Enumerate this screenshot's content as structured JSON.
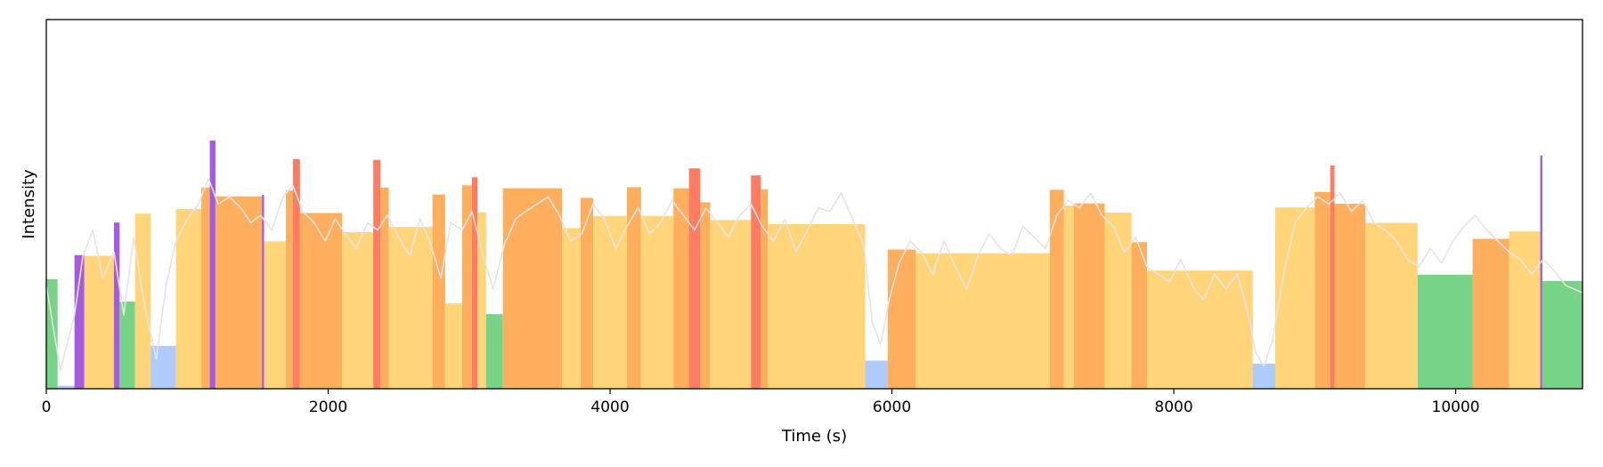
{
  "chart_data": {
    "type": "bar",
    "title": "",
    "xlabel": "Time (s)",
    "ylabel": "Intensity",
    "xlim": [
      0,
      10900
    ],
    "ylim": [
      0,
      1
    ],
    "grid": false,
    "legend": "none",
    "x_ticks": [
      0,
      2000,
      4000,
      6000,
      8000,
      10000
    ],
    "x_tick_labels": [
      "0",
      "2000",
      "4000",
      "6000",
      "8000",
      "10000"
    ],
    "colors": {
      "green": "#77d385",
      "blue": "#aecbfa",
      "yellow": "#ffd57a",
      "orange": "#fdaf5d",
      "red": "#ff7b61",
      "purple": "#a45bdc",
      "trace": "#e4e4e4"
    },
    "segments": [
      {
        "start": 0,
        "end": 80,
        "value": 0.297,
        "color": "green"
      },
      {
        "start": 80,
        "end": 200,
        "value": 0.008,
        "color": "blue"
      },
      {
        "start": 200,
        "end": 270,
        "value": 0.362,
        "color": "purple"
      },
      {
        "start": 270,
        "end": 480,
        "value": 0.36,
        "color": "yellow"
      },
      {
        "start": 480,
        "end": 520,
        "value": 0.45,
        "color": "purple"
      },
      {
        "start": 520,
        "end": 630,
        "value": 0.236,
        "color": "green"
      },
      {
        "start": 630,
        "end": 740,
        "value": 0.474,
        "color": "yellow"
      },
      {
        "start": 740,
        "end": 920,
        "value": 0.116,
        "color": "blue"
      },
      {
        "start": 920,
        "end": 1100,
        "value": 0.487,
        "color": "yellow"
      },
      {
        "start": 1100,
        "end": 1160,
        "value": 0.545,
        "color": "orange"
      },
      {
        "start": 1160,
        "end": 1200,
        "value": 0.672,
        "color": "purple"
      },
      {
        "start": 1200,
        "end": 1530,
        "value": 0.521,
        "color": "orange"
      },
      {
        "start": 1530,
        "end": 1545,
        "value": 0.525,
        "color": "purple"
      },
      {
        "start": 1545,
        "end": 1700,
        "value": 0.399,
        "color": "yellow"
      },
      {
        "start": 1700,
        "end": 1750,
        "value": 0.537,
        "color": "orange"
      },
      {
        "start": 1750,
        "end": 1800,
        "value": 0.622,
        "color": "red"
      },
      {
        "start": 1800,
        "end": 2100,
        "value": 0.476,
        "color": "orange"
      },
      {
        "start": 2100,
        "end": 2320,
        "value": 0.424,
        "color": "yellow"
      },
      {
        "start": 2320,
        "end": 2370,
        "value": 0.62,
        "color": "red"
      },
      {
        "start": 2370,
        "end": 2430,
        "value": 0.545,
        "color": "orange"
      },
      {
        "start": 2430,
        "end": 2740,
        "value": 0.438,
        "color": "yellow"
      },
      {
        "start": 2740,
        "end": 2830,
        "value": 0.526,
        "color": "orange"
      },
      {
        "start": 2830,
        "end": 2950,
        "value": 0.231,
        "color": "yellow"
      },
      {
        "start": 2950,
        "end": 3020,
        "value": 0.551,
        "color": "orange"
      },
      {
        "start": 3020,
        "end": 3060,
        "value": 0.573,
        "color": "red"
      },
      {
        "start": 3060,
        "end": 3120,
        "value": 0.478,
        "color": "yellow"
      },
      {
        "start": 3120,
        "end": 3240,
        "value": 0.202,
        "color": "green"
      },
      {
        "start": 3240,
        "end": 3660,
        "value": 0.543,
        "color": "orange"
      },
      {
        "start": 3660,
        "end": 3790,
        "value": 0.435,
        "color": "yellow"
      },
      {
        "start": 3790,
        "end": 3880,
        "value": 0.517,
        "color": "orange"
      },
      {
        "start": 3880,
        "end": 4120,
        "value": 0.468,
        "color": "yellow"
      },
      {
        "start": 4120,
        "end": 4220,
        "value": 0.546,
        "color": "orange"
      },
      {
        "start": 4220,
        "end": 4450,
        "value": 0.468,
        "color": "yellow"
      },
      {
        "start": 4450,
        "end": 4560,
        "value": 0.543,
        "color": "orange"
      },
      {
        "start": 4560,
        "end": 4640,
        "value": 0.597,
        "color": "red"
      },
      {
        "start": 4640,
        "end": 4710,
        "value": 0.505,
        "color": "orange"
      },
      {
        "start": 4710,
        "end": 5000,
        "value": 0.457,
        "color": "yellow"
      },
      {
        "start": 5000,
        "end": 5070,
        "value": 0.578,
        "color": "red"
      },
      {
        "start": 5070,
        "end": 5120,
        "value": 0.54,
        "color": "orange"
      },
      {
        "start": 5120,
        "end": 5810,
        "value": 0.446,
        "color": "yellow"
      },
      {
        "start": 5810,
        "end": 5970,
        "value": 0.076,
        "color": "blue"
      },
      {
        "start": 5970,
        "end": 6170,
        "value": 0.377,
        "color": "orange"
      },
      {
        "start": 6170,
        "end": 7120,
        "value": 0.367,
        "color": "yellow"
      },
      {
        "start": 7120,
        "end": 7220,
        "value": 0.539,
        "color": "orange"
      },
      {
        "start": 7220,
        "end": 7290,
        "value": 0.496,
        "color": "yellow"
      },
      {
        "start": 7290,
        "end": 7510,
        "value": 0.502,
        "color": "orange"
      },
      {
        "start": 7510,
        "end": 7700,
        "value": 0.477,
        "color": "yellow"
      },
      {
        "start": 7700,
        "end": 7810,
        "value": 0.397,
        "color": "orange"
      },
      {
        "start": 7810,
        "end": 8560,
        "value": 0.32,
        "color": "yellow"
      },
      {
        "start": 8560,
        "end": 8720,
        "value": 0.068,
        "color": "blue"
      },
      {
        "start": 8720,
        "end": 9000,
        "value": 0.491,
        "color": "yellow"
      },
      {
        "start": 9000,
        "end": 9110,
        "value": 0.533,
        "color": "orange"
      },
      {
        "start": 9110,
        "end": 9140,
        "value": 0.605,
        "color": "red"
      },
      {
        "start": 9140,
        "end": 9360,
        "value": 0.501,
        "color": "orange"
      },
      {
        "start": 9360,
        "end": 9730,
        "value": 0.449,
        "color": "yellow"
      },
      {
        "start": 9730,
        "end": 10120,
        "value": 0.309,
        "color": "green"
      },
      {
        "start": 10120,
        "end": 10380,
        "value": 0.406,
        "color": "orange"
      },
      {
        "start": 10380,
        "end": 10600,
        "value": 0.426,
        "color": "yellow"
      },
      {
        "start": 10600,
        "end": 10615,
        "value": 0.632,
        "color": "purple"
      },
      {
        "start": 10615,
        "end": 10900,
        "value": 0.292,
        "color": "green"
      }
    ],
    "trace": {
      "color": "trace",
      "x": [
        0,
        100,
        200,
        260,
        330,
        400,
        480,
        550,
        620,
        700,
        780,
        850,
        920,
        1000,
        1080,
        1150,
        1220,
        1300,
        1380,
        1450,
        1520,
        1600,
        1680,
        1750,
        1820,
        1900,
        1980,
        2050,
        2120,
        2200,
        2280,
        2350,
        2420,
        2500,
        2580,
        2650,
        2720,
        2800,
        2870,
        2950,
        3020,
        3100,
        3170,
        3250,
        3330,
        3400,
        3480,
        3560,
        3640,
        3720,
        3800,
        3880,
        3960,
        4040,
        4120,
        4200,
        4280,
        4360,
        4440,
        4520,
        4600,
        4680,
        4760,
        4840,
        4920,
        5000,
        5080,
        5160,
        5240,
        5320,
        5400,
        5480,
        5560,
        5640,
        5720,
        5800,
        5860,
        5920,
        5980,
        6050,
        6130,
        6210,
        6290,
        6370,
        6450,
        6530,
        6610,
        6690,
        6770,
        6850,
        6930,
        7010,
        7090,
        7170,
        7250,
        7330,
        7410,
        7490,
        7570,
        7650,
        7730,
        7810,
        7890,
        7970,
        8050,
        8130,
        8210,
        8290,
        8370,
        8450,
        8530,
        8580,
        8640,
        8700,
        8780,
        8860,
        8940,
        9020,
        9100,
        9180,
        9260,
        9340,
        9420,
        9500,
        9580,
        9660,
        9740,
        9820,
        9900,
        9980,
        10060,
        10140,
        10220,
        10300,
        10380,
        10460,
        10540,
        10620,
        10700,
        10780,
        10900
      ],
      "values": [
        0.28,
        0.05,
        0.2,
        0.36,
        0.43,
        0.3,
        0.37,
        0.2,
        0.41,
        0.22,
        0.08,
        0.28,
        0.4,
        0.46,
        0.5,
        0.57,
        0.5,
        0.52,
        0.49,
        0.45,
        0.47,
        0.43,
        0.52,
        0.55,
        0.48,
        0.45,
        0.4,
        0.46,
        0.42,
        0.38,
        0.45,
        0.43,
        0.47,
        0.41,
        0.36,
        0.46,
        0.4,
        0.3,
        0.45,
        0.43,
        0.48,
        0.36,
        0.27,
        0.39,
        0.46,
        0.48,
        0.5,
        0.52,
        0.47,
        0.4,
        0.42,
        0.5,
        0.46,
        0.38,
        0.44,
        0.49,
        0.42,
        0.45,
        0.51,
        0.47,
        0.43,
        0.49,
        0.45,
        0.41,
        0.47,
        0.5,
        0.44,
        0.4,
        0.46,
        0.37,
        0.43,
        0.49,
        0.48,
        0.53,
        0.46,
        0.39,
        0.18,
        0.12,
        0.24,
        0.34,
        0.4,
        0.37,
        0.31,
        0.4,
        0.33,
        0.27,
        0.36,
        0.42,
        0.38,
        0.36,
        0.44,
        0.41,
        0.38,
        0.47,
        0.51,
        0.49,
        0.53,
        0.47,
        0.44,
        0.37,
        0.41,
        0.33,
        0.31,
        0.29,
        0.35,
        0.28,
        0.24,
        0.31,
        0.27,
        0.31,
        0.2,
        0.1,
        0.06,
        0.13,
        0.31,
        0.45,
        0.49,
        0.52,
        0.5,
        0.53,
        0.48,
        0.51,
        0.45,
        0.43,
        0.4,
        0.35,
        0.33,
        0.38,
        0.34,
        0.4,
        0.44,
        0.47,
        0.43,
        0.4,
        0.37,
        0.35,
        0.31,
        0.35,
        0.32,
        0.28,
        0.26
      ]
    }
  }
}
